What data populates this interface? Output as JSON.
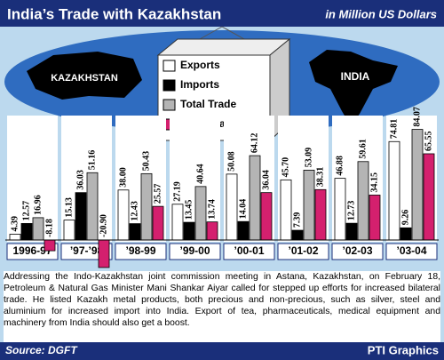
{
  "chart_data": {
    "type": "bar",
    "title": "India’s Trade with Kazakhstan",
    "subtitle": "in Million US Dollars",
    "map_labels": [
      "KAZAKHSTAN",
      "INDIA"
    ],
    "categories": [
      "1996-97",
      "’97-’98",
      "’98-99",
      "’99-00",
      "’00-01",
      "’01-02",
      "’02-03",
      "’03-04"
    ],
    "series": [
      {
        "name": "Exports",
        "color": "#ffffff",
        "values": [
          4.39,
          15.13,
          38.0,
          27.19,
          50.08,
          45.7,
          46.88,
          74.81
        ],
        "value_labels": [
          "4.39",
          "15.13",
          "38.00",
          "27.19",
          "50.08",
          "45.70",
          "46.88",
          "74.81"
        ]
      },
      {
        "name": "Imports",
        "color": "#000000",
        "values": [
          12.57,
          36.03,
          12.43,
          13.45,
          14.04,
          7.39,
          12.73,
          9.26
        ],
        "value_labels": [
          "12.57",
          "36.03",
          "12.43",
          "13.45",
          "14.04",
          "7.39",
          "12.73",
          "9.26"
        ]
      },
      {
        "name": "Total Trade",
        "color": "#b4b4b4",
        "values": [
          16.96,
          51.16,
          50.43,
          40.64,
          64.12,
          53.09,
          59.61,
          84.07
        ],
        "value_labels": [
          "16.96",
          "51.16",
          "50.43",
          "40.64",
          "64.12",
          "53.09",
          "59.61",
          "84.07"
        ]
      },
      {
        "name": "Trade Balance",
        "color": "#d4206e",
        "values": [
          -8.18,
          -20.9,
          25.57,
          13.74,
          36.04,
          38.31,
          34.15,
          65.55
        ],
        "value_labels": [
          "-8.18",
          "-20.90",
          "25.57",
          "13.74",
          "36.04",
          "38.31",
          "34.15",
          "65.55"
        ]
      }
    ],
    "body": "Addressing the Indo-Kazakhstan joint commission meeting in Astana, Kazakhstan, on February 18, Petroleum & Natural Gas Minister Mani Shankar Aiyar called for stepped up efforts for increased bilateral trade. He listed Kazakh metal products, both precious and non-precious, such as silver, steel and aluminium for increased import into India. Export of tea, pharmaceuticals, medical equipment and machinery from India should also get a boost.",
    "source": "Source: DGFT",
    "credit": "PTI Graphics"
  }
}
